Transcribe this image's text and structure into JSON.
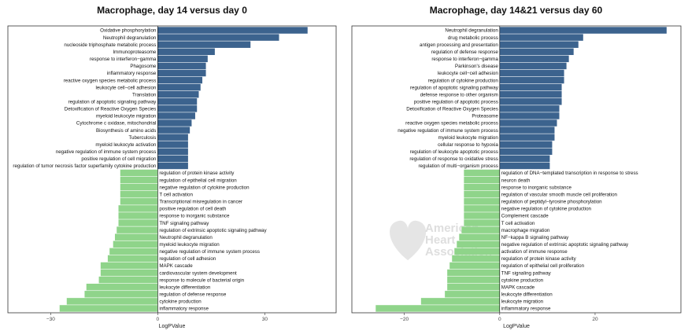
{
  "colors": {
    "up": "#3c638e",
    "down": "#8fd48a",
    "frame": "#333333",
    "watermark": "#cfcfcf"
  },
  "watermark": {
    "line1": "American",
    "line2": "Heart",
    "line3": "Association"
  },
  "chart_data": [
    {
      "type": "bar",
      "title": "Macrophage, day 14 versus day 0",
      "xlabel": "LogPValue",
      "ylabel": "",
      "xlim": [
        -42,
        50
      ],
      "xticks": [
        -30,
        0,
        30
      ],
      "up_terms": [
        {
          "label": "Oxidative phosphorylation",
          "value": 42
        },
        {
          "label": "Neutrophil degranulation",
          "value": 34
        },
        {
          "label": "nucleoside triphosphate metabolic process",
          "value": 26
        },
        {
          "label": "Immunoproteasome",
          "value": 16
        },
        {
          "label": "response to interferon−gamma",
          "value": 14
        },
        {
          "label": "Phagosome",
          "value": 13.5
        },
        {
          "label": "inflammatory response",
          "value": 13.5
        },
        {
          "label": "reactive oxygen species metabolic process",
          "value": 12.5
        },
        {
          "label": "leukocyte cell−cell adhesion",
          "value": 12
        },
        {
          "label": "Translation",
          "value": 11.5
        },
        {
          "label": "regulation of apoptotic signaling pathway",
          "value": 11
        },
        {
          "label": "Detoxification of Reactive Oxygen Species",
          "value": 11
        },
        {
          "label": "myeloid leukocyte migration",
          "value": 10.5
        },
        {
          "label": "Cytochrome c oxidase, mitochondrial",
          "value": 9.5
        },
        {
          "label": "Biosynthesis of amino acids",
          "value": 9
        },
        {
          "label": "Tuberculosis",
          "value": 8.5
        },
        {
          "label": "myeloid leukocyte activation",
          "value": 8.5
        },
        {
          "label": "negative regulation of immune system process",
          "value": 8.5
        },
        {
          "label": "positive regulation of cell migration",
          "value": 8.5
        },
        {
          "label": "regulation of tumor necrosis factor superfamily cytokine production",
          "value": 8.5
        }
      ],
      "down_terms": [
        {
          "label": "regulation of protein kinase activity",
          "value": -10.5
        },
        {
          "label": "regulation of epithelial cell migration",
          "value": -10.5
        },
        {
          "label": "negative regulation of cytokine production",
          "value": -10.5
        },
        {
          "label": "T cell activation",
          "value": -10.5
        },
        {
          "label": "Transcriptional misregulation in cancer",
          "value": -10.5
        },
        {
          "label": "positive regulation of cell death",
          "value": -11
        },
        {
          "label": "response to inorganic substance",
          "value": -11
        },
        {
          "label": "TNF signaling pathway",
          "value": -11
        },
        {
          "label": "regulation of extrinsic apoptotic signaling pathway",
          "value": -11.5
        },
        {
          "label": "Neutrophil degranulation",
          "value": -12
        },
        {
          "label": "myeloid leukocyte migration",
          "value": -12.5
        },
        {
          "label": "negative regulation of immune system process",
          "value": -13.5
        },
        {
          "label": "regulation of cell adhesion",
          "value": -14
        },
        {
          "label": "MAPK cascade",
          "value": -16
        },
        {
          "label": "cardiovascular system development",
          "value": -16
        },
        {
          "label": "response to molecule of bacterial origin",
          "value": -16.5
        },
        {
          "label": "leukocyte differentiation",
          "value": -20
        },
        {
          "label": "regulation of defense response",
          "value": -20.5
        },
        {
          "label": "cytokine production",
          "value": -25.5
        },
        {
          "label": "inflammatory response",
          "value": -27.5
        }
      ]
    },
    {
      "type": "bar",
      "title": "Macrophage, day 14&21 versus day 60",
      "xlabel": "LogPValue",
      "ylabel": "",
      "xlim": [
        -31,
        38
      ],
      "xticks": [
        -20,
        20
      ],
      "up_terms": [
        {
          "label": "Neutrophil degranulation",
          "value": 35
        },
        {
          "label": "drug metabolic process",
          "value": 17.5
        },
        {
          "label": "antigen processing and presentation",
          "value": 16.5
        },
        {
          "label": "regulation of defense response",
          "value": 15.5
        },
        {
          "label": "response to interferon−gamma",
          "value": 14.5
        },
        {
          "label": "Parkinson's disease",
          "value": 14
        },
        {
          "label": "leukocyte cell−cell adhesion",
          "value": 13.5
        },
        {
          "label": "regulation of cytokine production",
          "value": 13.5
        },
        {
          "label": "regulation of apoptotic signaling pathway",
          "value": 13
        },
        {
          "label": "defense response to other organism",
          "value": 13
        },
        {
          "label": "positive regulation of apoptotic process",
          "value": 13
        },
        {
          "label": "Detoxification of Reactive Oxygen Species",
          "value": 12.5
        },
        {
          "label": "Proteasome",
          "value": 12.5
        },
        {
          "label": "reactive oxygen species metabolic process",
          "value": 12
        },
        {
          "label": "negative regulation of immune system process",
          "value": 11.5
        },
        {
          "label": "myeloid leukocyte migration",
          "value": 11.5
        },
        {
          "label": "cellular response to hypoxia",
          "value": 11
        },
        {
          "label": "regulation of leukocyte apoptotic process",
          "value": 11
        },
        {
          "label": "regulation of response to oxidative stress",
          "value": 10.5
        },
        {
          "label": "regulation of multi−organism process",
          "value": 10.5
        }
      ],
      "down_terms": [
        {
          "label": "regulation of DNA−templated transcription in response to stress",
          "value": -7.5
        },
        {
          "label": "neuron death",
          "value": -7.5
        },
        {
          "label": "response to inorganic substance",
          "value": -7.5
        },
        {
          "label": "regulation of vascular smooth muscle cell proliferation",
          "value": -7.5
        },
        {
          "label": "regulation of peptidyl−tyrosine phosphorylation",
          "value": -7.5
        },
        {
          "label": "negative regulation of cytokine production",
          "value": -7.5
        },
        {
          "label": "Complement cascade",
          "value": -7.5
        },
        {
          "label": "T cell activation",
          "value": -7.5
        },
        {
          "label": "macrophage migration",
          "value": -8
        },
        {
          "label": "NF−kappa B signaling pathway",
          "value": -8.5
        },
        {
          "label": "negative regulation of extrinsic apoptotic signaling pathway",
          "value": -9
        },
        {
          "label": "activation of immune response",
          "value": -9.5
        },
        {
          "label": "regulation of protein kinase activity",
          "value": -10
        },
        {
          "label": "regulation of epithelial cell proliferation",
          "value": -10.5
        },
        {
          "label": "TNF signaling pathway",
          "value": -11
        },
        {
          "label": "cytokine production",
          "value": -11
        },
        {
          "label": "MAPK cascade",
          "value": -11
        },
        {
          "label": "leukocyte differentiation",
          "value": -11.5
        },
        {
          "label": "leukocyte migration",
          "value": -16.5
        },
        {
          "label": "inflammatory response",
          "value": -26
        }
      ]
    }
  ]
}
